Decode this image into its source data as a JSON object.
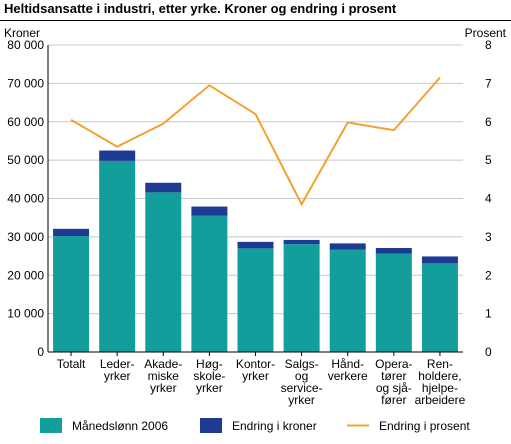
{
  "chart_data": {
    "type": "bar",
    "title": "Heltidsansatte i industri, etter yrke. Kroner og endring i prosent",
    "ylabel_left": "Kroner",
    "ylabel_right": "Prosent",
    "ylim_left": [
      0,
      80000
    ],
    "ylim_right": [
      0,
      8
    ],
    "yticks_left": [
      "0",
      "10 000",
      "20 000",
      "30 000",
      "40 000",
      "50 000",
      "60 000",
      "70 000",
      "80 000"
    ],
    "yticks_right": [
      "0",
      "1",
      "2",
      "3",
      "4",
      "5",
      "6",
      "7",
      "8"
    ],
    "categories": [
      [
        "Totalt"
      ],
      [
        "Leder-",
        "yrker"
      ],
      [
        "Akade-",
        "miske",
        "yrker"
      ],
      [
        "Høg-",
        "skole-",
        "yrker"
      ],
      [
        "Kontor-",
        "yrker"
      ],
      [
        "Salgs-",
        "og",
        "service-",
        "yrker"
      ],
      [
        "Hånd-",
        "verkere"
      ],
      [
        "Opera-",
        "tører",
        "og sjå-",
        "fører"
      ],
      [
        "Ren-",
        "holdere,",
        "hjelpe-",
        "arbeidere"
      ]
    ],
    "series": [
      {
        "name": "Månedslønn 2006",
        "type": "bar",
        "stack": "kroner",
        "color": "#129f9b",
        "values": [
          30200,
          49800,
          41600,
          35500,
          27000,
          28100,
          26700,
          25600,
          23100
        ]
      },
      {
        "name": "Endring i kroner",
        "type": "bar",
        "stack": "kroner",
        "color": "#1f3a93",
        "values": [
          1900,
          2700,
          2500,
          2400,
          1700,
          1100,
          1600,
          1500,
          1800
        ]
      },
      {
        "name": "Endring i prosent",
        "type": "line",
        "axis": "right",
        "color": "#f5a031",
        "values": [
          6.05,
          5.35,
          5.95,
          6.95,
          6.2,
          3.85,
          5.98,
          5.78,
          7.15
        ]
      }
    ],
    "grid": true,
    "legend": "bottom"
  }
}
